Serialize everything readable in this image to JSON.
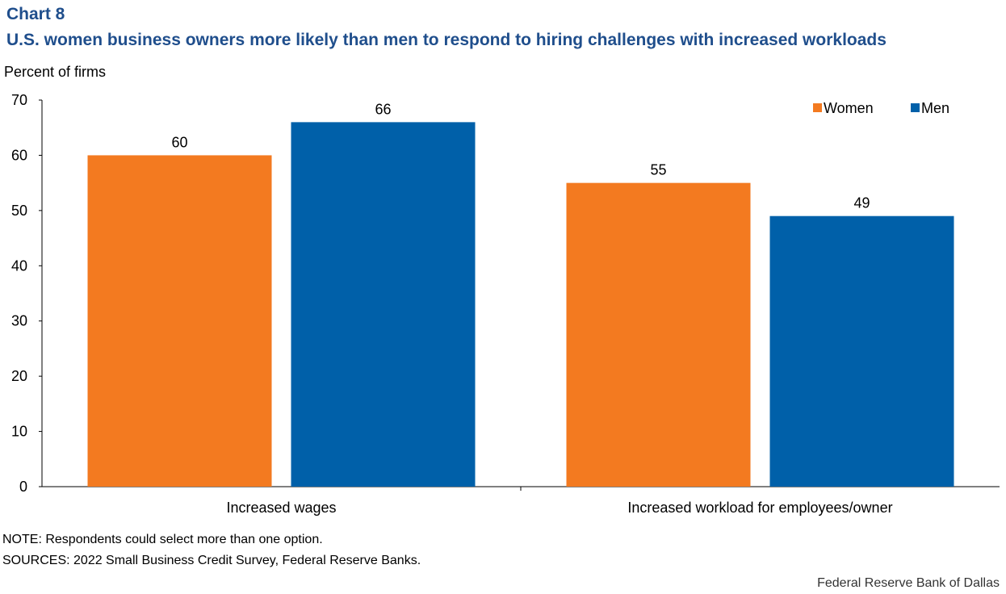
{
  "header": {
    "chart_number": "Chart 8",
    "title": "U.S. women business owners more likely than men to respond to hiring challenges with increased workloads"
  },
  "footer": {
    "note": "NOTE: Respondents could select more than one option.",
    "sources": "SOURCES: 2022 Small Business Credit Survey, Federal Reserve Banks.",
    "credit": "Federal Reserve Bank of Dallas"
  },
  "colors": {
    "women": "#f37a20",
    "men": "#0060a9",
    "title": "#1f4e8c"
  },
  "chart_data": {
    "type": "bar",
    "title": "U.S. women business owners more likely than men to respond to hiring challenges with increased workloads",
    "xlabel": "",
    "ylabel": "Percent of firms",
    "ylim": [
      0,
      70
    ],
    "yticks": [
      0,
      10,
      20,
      30,
      40,
      50,
      60,
      70
    ],
    "categories": [
      "Increased wages",
      "Increased workload for employees/owner"
    ],
    "series": [
      {
        "name": "Women",
        "values": [
          60,
          55
        ]
      },
      {
        "name": "Men",
        "values": [
          66,
          49
        ]
      }
    ],
    "legend": "top-right",
    "grid": false
  }
}
